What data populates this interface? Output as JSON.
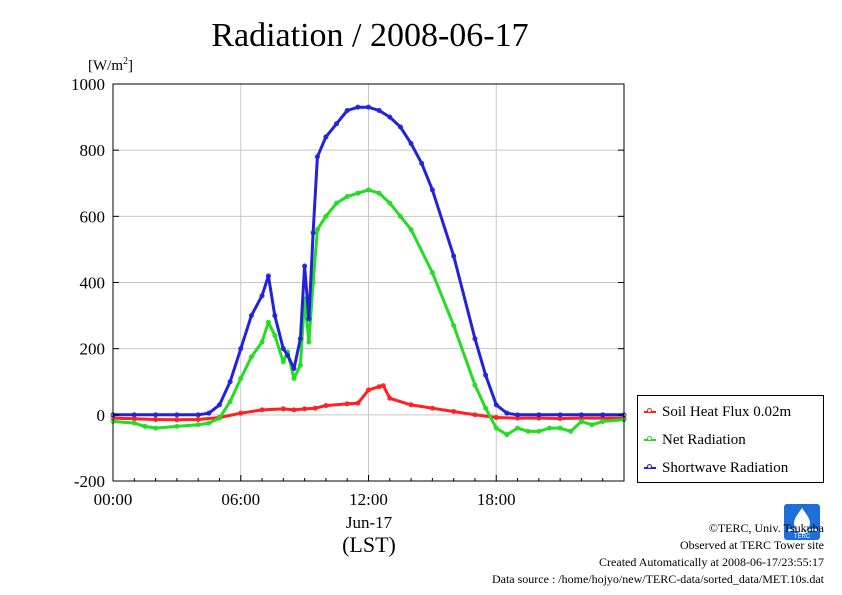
{
  "chart_data": {
    "type": "line",
    "title": "Radiation / 2008-06-17",
    "ylabel": "[W/m2]",
    "ylabel_main": "[W/m",
    "ylabel_sup": "2",
    "ylabel_close": "]",
    "xlabel_date": "Jun-17",
    "xlabel": "(LST)",
    "ylim": [
      -200,
      1000
    ],
    "xlim": [
      0,
      24
    ],
    "y_ticks": [
      -200,
      0,
      200,
      400,
      600,
      800,
      1000
    ],
    "x_ticks": [
      {
        "value": 0,
        "label": "00:00"
      },
      {
        "value": 6,
        "label": "06:00"
      },
      {
        "value": 12,
        "label": "12:00"
      },
      {
        "value": 18,
        "label": "18:00"
      }
    ],
    "grid": true,
    "legend_position": "right-bottom",
    "series": [
      {
        "name": "Soil Heat Flux 0.02m",
        "color": "#ff2020",
        "x": [
          0,
          1,
          2,
          3,
          4,
          5,
          6,
          7,
          8,
          8.5,
          9,
          9.5,
          10,
          11,
          11.5,
          12,
          12.5,
          12.7,
          13,
          14,
          15,
          16,
          17,
          18,
          19,
          20,
          21,
          22,
          23,
          24
        ],
        "values": [
          -10,
          -12,
          -14,
          -15,
          -14,
          -8,
          5,
          15,
          18,
          15,
          18,
          20,
          28,
          33,
          35,
          75,
          85,
          88,
          50,
          30,
          20,
          10,
          0,
          -8,
          -10,
          -10,
          -11,
          -10,
          -10,
          -10
        ]
      },
      {
        "name": "Net Radiation",
        "color": "#22dd22",
        "x": [
          0,
          1,
          1.5,
          2,
          3,
          4,
          4.5,
          5,
          5.5,
          6,
          6.5,
          7,
          7.3,
          7.6,
          8,
          8.2,
          8.5,
          8.8,
          9,
          9.2,
          9.4,
          9.6,
          10,
          10.5,
          11,
          11.5,
          12,
          12.5,
          13,
          13.5,
          14,
          15,
          16,
          17,
          17.5,
          18,
          18.5,
          19,
          19.5,
          20,
          20.5,
          21,
          21.5,
          22,
          22.5,
          23,
          24
        ],
        "values": [
          -20,
          -25,
          -35,
          -40,
          -35,
          -30,
          -25,
          -10,
          40,
          110,
          175,
          220,
          280,
          240,
          160,
          190,
          110,
          150,
          350,
          220,
          400,
          560,
          600,
          640,
          660,
          670,
          680,
          670,
          640,
          600,
          560,
          430,
          270,
          90,
          20,
          -40,
          -60,
          -40,
          -50,
          -50,
          -40,
          -40,
          -50,
          -20,
          -30,
          -20,
          -15
        ]
      },
      {
        "name": "Shortwave Radiation",
        "color": "#2222dd",
        "x": [
          0,
          1,
          2,
          3,
          4,
          4.5,
          5,
          5.5,
          6,
          6.5,
          7,
          7.3,
          7.6,
          8,
          8.2,
          8.5,
          8.8,
          9,
          9.2,
          9.4,
          9.6,
          10,
          10.5,
          11,
          11.5,
          12,
          12.5,
          13,
          13.5,
          14,
          14.5,
          15,
          16,
          17,
          17.5,
          18,
          18.5,
          19,
          20,
          21,
          22,
          23,
          24
        ],
        "values": [
          0,
          0,
          0,
          0,
          0,
          5,
          30,
          100,
          200,
          300,
          360,
          420,
          300,
          200,
          180,
          140,
          230,
          450,
          290,
          550,
          780,
          840,
          880,
          920,
          930,
          930,
          920,
          900,
          870,
          820,
          760,
          680,
          480,
          230,
          120,
          30,
          5,
          0,
          0,
          0,
          0,
          0,
          0
        ]
      }
    ]
  },
  "footer": {
    "copyright": "©TERC, Univ. Tsukuba",
    "site": "Observed at TERC Tower site",
    "created": "Created Automatically at 2008-06-17/23:55:17",
    "source": "Data source : /home/hojyo/new/TERC-data/sorted_data/MET.10s.dat"
  },
  "logo_text": "TERC"
}
